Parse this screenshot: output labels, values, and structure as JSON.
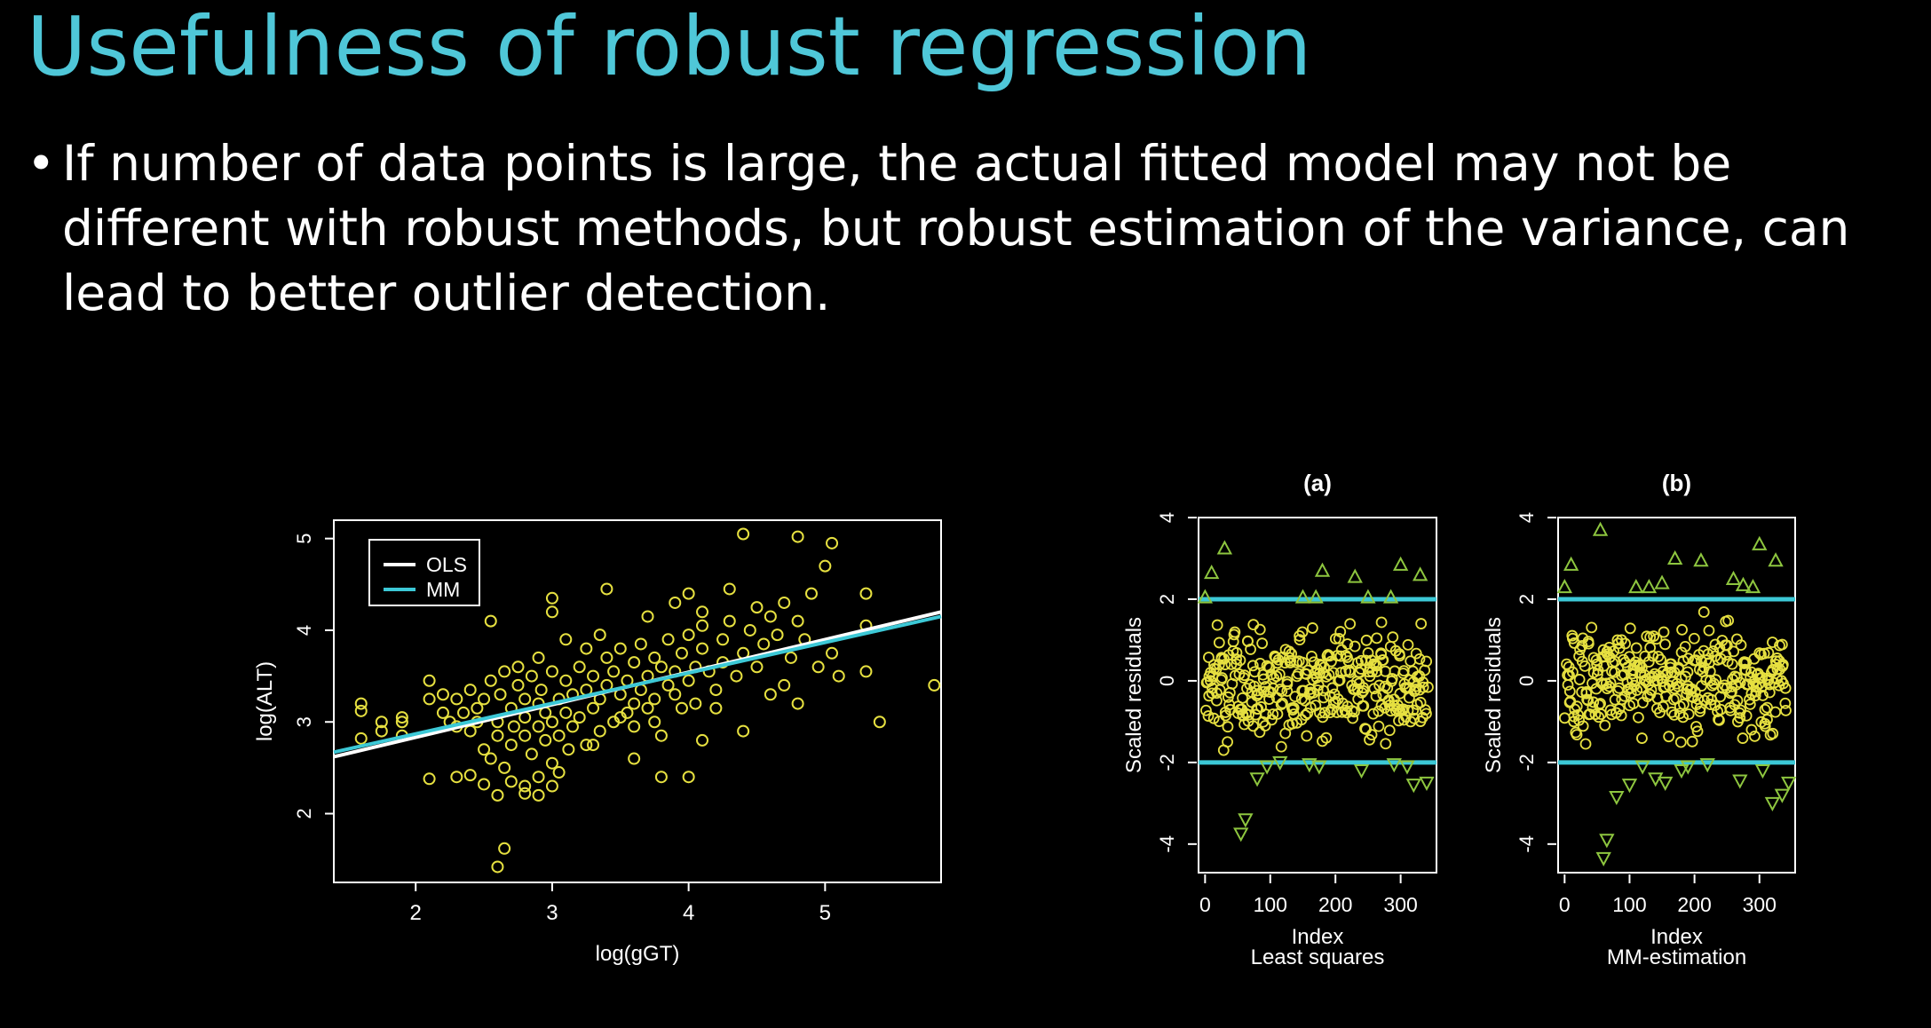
{
  "slide": {
    "title": "Usefulness of robust regression",
    "bullet_marker": "•",
    "bullet_text": "If number of data points is large, the actual fitted model may not be different with robust methods,  but robust estimation of the variance, can lead to better outlier detection."
  },
  "chart_data": [
    {
      "type": "scatter",
      "title": "",
      "xlabel": "log(gGT)",
      "ylabel": "log(ALT)",
      "xlim": [
        1.4,
        5.85
      ],
      "ylim": [
        1.25,
        5.2
      ],
      "xticks": [
        2,
        3,
        4,
        5
      ],
      "yticks": [
        2,
        3,
        4,
        5
      ],
      "marker_color": "#e6e040",
      "legend": {
        "position": "top-left",
        "entries": [
          {
            "name": "OLS",
            "color": "#ffffff"
          },
          {
            "name": "MM",
            "color": "#3cc8d6"
          }
        ]
      },
      "lines": [
        {
          "name": "OLS",
          "color": "#ffffff",
          "x": [
            1.4,
            5.85
          ],
          "y": [
            2.62,
            4.2
          ]
        },
        {
          "name": "MM",
          "color": "#3cc8d6",
          "x": [
            1.4,
            5.85
          ],
          "y": [
            2.67,
            4.15
          ]
        }
      ],
      "points": [
        [
          2.6,
          1.42
        ],
        [
          2.65,
          1.62
        ],
        [
          2.8,
          2.22
        ],
        [
          2.8,
          2.3
        ],
        [
          2.9,
          2.4
        ],
        [
          3.0,
          2.3
        ],
        [
          3.05,
          2.45
        ],
        [
          2.5,
          2.32
        ],
        [
          2.4,
          2.42
        ],
        [
          2.3,
          2.4
        ],
        [
          2.1,
          2.38
        ],
        [
          1.6,
          2.82
        ],
        [
          1.6,
          3.12
        ],
        [
          1.6,
          3.2
        ],
        [
          1.75,
          2.9
        ],
        [
          1.75,
          3.0
        ],
        [
          1.9,
          3.0
        ],
        [
          1.9,
          3.05
        ],
        [
          1.9,
          2.85
        ],
        [
          2.1,
          3.45
        ],
        [
          2.1,
          3.25
        ],
        [
          2.2,
          3.1
        ],
        [
          2.2,
          3.3
        ],
        [
          2.25,
          3.0
        ],
        [
          2.3,
          2.95
        ],
        [
          2.3,
          3.25
        ],
        [
          2.35,
          3.1
        ],
        [
          2.4,
          2.9
        ],
        [
          2.4,
          3.35
        ],
        [
          2.45,
          3.15
        ],
        [
          2.45,
          3.0
        ],
        [
          2.5,
          2.7
        ],
        [
          2.5,
          3.25
        ],
        [
          2.55,
          3.45
        ],
        [
          2.55,
          2.6
        ],
        [
          2.6,
          3.0
        ],
        [
          2.6,
          2.85
        ],
        [
          2.62,
          3.3
        ],
        [
          2.65,
          2.5
        ],
        [
          2.65,
          3.55
        ],
        [
          2.7,
          2.75
        ],
        [
          2.7,
          3.15
        ],
        [
          2.72,
          2.95
        ],
        [
          2.75,
          3.4
        ],
        [
          2.75,
          3.6
        ],
        [
          2.8,
          2.85
        ],
        [
          2.8,
          3.05
        ],
        [
          2.8,
          3.25
        ],
        [
          2.85,
          3.5
        ],
        [
          2.85,
          2.65
        ],
        [
          2.9,
          3.2
        ],
        [
          2.9,
          2.95
        ],
        [
          2.92,
          3.35
        ],
        [
          2.95,
          3.1
        ],
        [
          2.95,
          2.8
        ],
        [
          3.0,
          3.55
        ],
        [
          3.0,
          3.0
        ],
        [
          3.05,
          3.25
        ],
        [
          3.05,
          2.85
        ],
        [
          3.1,
          3.45
        ],
        [
          3.1,
          3.1
        ],
        [
          3.12,
          2.7
        ],
        [
          3.15,
          3.3
        ],
        [
          3.15,
          2.95
        ],
        [
          3.2,
          3.6
        ],
        [
          3.2,
          3.05
        ],
        [
          3.25,
          3.35
        ],
        [
          3.25,
          2.75
        ],
        [
          3.3,
          3.5
        ],
        [
          3.3,
          3.15
        ],
        [
          3.35,
          3.25
        ],
        [
          3.35,
          2.9
        ],
        [
          3.4,
          3.7
        ],
        [
          3.4,
          3.4
        ],
        [
          3.45,
          3.0
        ],
        [
          3.45,
          3.55
        ],
        [
          3.5,
          3.3
        ],
        [
          3.5,
          3.8
        ],
        [
          3.55,
          3.1
        ],
        [
          3.55,
          3.45
        ],
        [
          3.6,
          3.65
        ],
        [
          3.6,
          2.95
        ],
        [
          3.65,
          3.35
        ],
        [
          3.65,
          3.85
        ],
        [
          3.7,
          3.5
        ],
        [
          3.7,
          3.15
        ],
        [
          3.75,
          3.25
        ],
        [
          3.75,
          3.7
        ],
        [
          3.8,
          3.6
        ],
        [
          3.8,
          2.85
        ],
        [
          3.85,
          3.4
        ],
        [
          3.85,
          3.9
        ],
        [
          3.9,
          3.3
        ],
        [
          3.9,
          3.55
        ],
        [
          3.95,
          3.15
        ],
        [
          3.95,
          3.75
        ],
        [
          4.0,
          3.95
        ],
        [
          4.0,
          3.45
        ],
        [
          4.05,
          3.6
        ],
        [
          4.05,
          3.2
        ],
        [
          4.1,
          3.8
        ],
        [
          4.1,
          4.05
        ],
        [
          4.15,
          3.55
        ],
        [
          4.2,
          3.35
        ],
        [
          4.25,
          3.9
        ],
        [
          4.25,
          3.65
        ],
        [
          4.3,
          4.1
        ],
        [
          4.35,
          3.5
        ],
        [
          4.4,
          3.75
        ],
        [
          4.45,
          4.0
        ],
        [
          4.5,
          3.6
        ],
        [
          4.5,
          4.25
        ],
        [
          4.55,
          3.85
        ],
        [
          4.6,
          4.15
        ],
        [
          4.65,
          3.95
        ],
        [
          4.7,
          3.4
        ],
        [
          4.7,
          4.3
        ],
        [
          4.75,
          3.7
        ],
        [
          4.8,
          4.1
        ],
        [
          4.8,
          3.2
        ],
        [
          4.85,
          3.9
        ],
        [
          4.9,
          4.4
        ],
        [
          4.95,
          3.6
        ],
        [
          5.0,
          4.7
        ],
        [
          5.05,
          3.75
        ],
        [
          5.1,
          3.5
        ],
        [
          5.3,
          4.4
        ],
        [
          5.3,
          4.05
        ],
        [
          5.3,
          3.55
        ],
        [
          5.4,
          3.0
        ],
        [
          5.8,
          3.4
        ],
        [
          5.05,
          4.95
        ],
        [
          4.8,
          5.02
        ],
        [
          4.4,
          5.05
        ],
        [
          3.4,
          4.45
        ],
        [
          3.0,
          4.35
        ],
        [
          3.0,
          4.2
        ],
        [
          2.55,
          4.1
        ],
        [
          2.9,
          2.2
        ],
        [
          3.6,
          2.6
        ],
        [
          3.8,
          2.4
        ],
        [
          4.0,
          2.4
        ],
        [
          4.1,
          2.8
        ],
        [
          4.4,
          2.9
        ],
        [
          2.6,
          2.2
        ],
        [
          2.7,
          2.35
        ],
        [
          3.0,
          2.55
        ],
        [
          3.3,
          2.75
        ],
        [
          3.5,
          3.05
        ],
        [
          3.6,
          3.2
        ],
        [
          3.75,
          3.0
        ],
        [
          4.2,
          3.15
        ],
        [
          4.6,
          3.3
        ],
        [
          3.9,
          4.3
        ],
        [
          4.1,
          4.2
        ],
        [
          4.3,
          4.45
        ],
        [
          3.1,
          3.9
        ],
        [
          3.25,
          3.8
        ],
        [
          2.9,
          3.7
        ],
        [
          3.35,
          3.95
        ],
        [
          3.7,
          4.15
        ],
        [
          4.0,
          4.4
        ]
      ]
    },
    {
      "type": "scatter",
      "title": "(a)",
      "xlabel": "Index",
      "subtitle": "Least squares",
      "ylabel": "Scaled residuals",
      "xlim": [
        -10,
        355
      ],
      "ylim": [
        -4.7,
        4
      ],
      "xticks": [
        0,
        100,
        200,
        300
      ],
      "yticks": [
        -4,
        -2,
        0,
        2,
        4
      ],
      "hlines": [
        2,
        -2
      ],
      "marker_color": "#e6e040",
      "outlier_color": "#8ec63f",
      "seed": 7,
      "n": 340,
      "outliers_up": [
        [
          0,
          2.05
        ],
        [
          10,
          2.65
        ],
        [
          30,
          3.25
        ],
        [
          150,
          2.05
        ],
        [
          170,
          2.05
        ],
        [
          230,
          2.55
        ],
        [
          250,
          2.05
        ],
        [
          285,
          2.05
        ],
        [
          300,
          2.85
        ],
        [
          330,
          2.6
        ],
        [
          180,
          2.7
        ]
      ],
      "outliers_down": [
        [
          55,
          -3.75
        ],
        [
          62,
          -3.4
        ],
        [
          80,
          -2.4
        ],
        [
          95,
          -2.1
        ],
        [
          115,
          -2.0
        ],
        [
          160,
          -2.05
        ],
        [
          175,
          -2.1
        ],
        [
          240,
          -2.2
        ],
        [
          290,
          -2.05
        ],
        [
          310,
          -2.1
        ],
        [
          320,
          -2.55
        ],
        [
          340,
          -2.5
        ]
      ]
    },
    {
      "type": "scatter",
      "title": "(b)",
      "xlabel": "Index",
      "subtitle": "MM-estimation",
      "ylabel": "Scaled residuals",
      "xlim": [
        -10,
        355
      ],
      "ylim": [
        -4.7,
        4
      ],
      "xticks": [
        0,
        100,
        200,
        300
      ],
      "yticks": [
        -4,
        -2,
        0,
        2,
        4
      ],
      "hlines": [
        2,
        -2
      ],
      "marker_color": "#e6e040",
      "outlier_color": "#8ec63f",
      "seed": 21,
      "n": 340,
      "outliers_up": [
        [
          0,
          2.3
        ],
        [
          10,
          2.85
        ],
        [
          55,
          3.7
        ],
        [
          110,
          2.3
        ],
        [
          130,
          2.3
        ],
        [
          150,
          2.4
        ],
        [
          170,
          3.0
        ],
        [
          210,
          2.95
        ],
        [
          260,
          2.5
        ],
        [
          275,
          2.35
        ],
        [
          300,
          3.35
        ],
        [
          325,
          2.95
        ],
        [
          290,
          2.3
        ]
      ],
      "outliers_down": [
        [
          60,
          -4.35
        ],
        [
          65,
          -3.9
        ],
        [
          80,
          -2.85
        ],
        [
          100,
          -2.55
        ],
        [
          120,
          -2.1
        ],
        [
          140,
          -2.4
        ],
        [
          155,
          -2.5
        ],
        [
          190,
          -2.1
        ],
        [
          220,
          -2.05
        ],
        [
          270,
          -2.45
        ],
        [
          305,
          -2.2
        ],
        [
          320,
          -3.0
        ],
        [
          335,
          -2.8
        ],
        [
          345,
          -2.5
        ],
        [
          180,
          -2.2
        ]
      ]
    }
  ]
}
